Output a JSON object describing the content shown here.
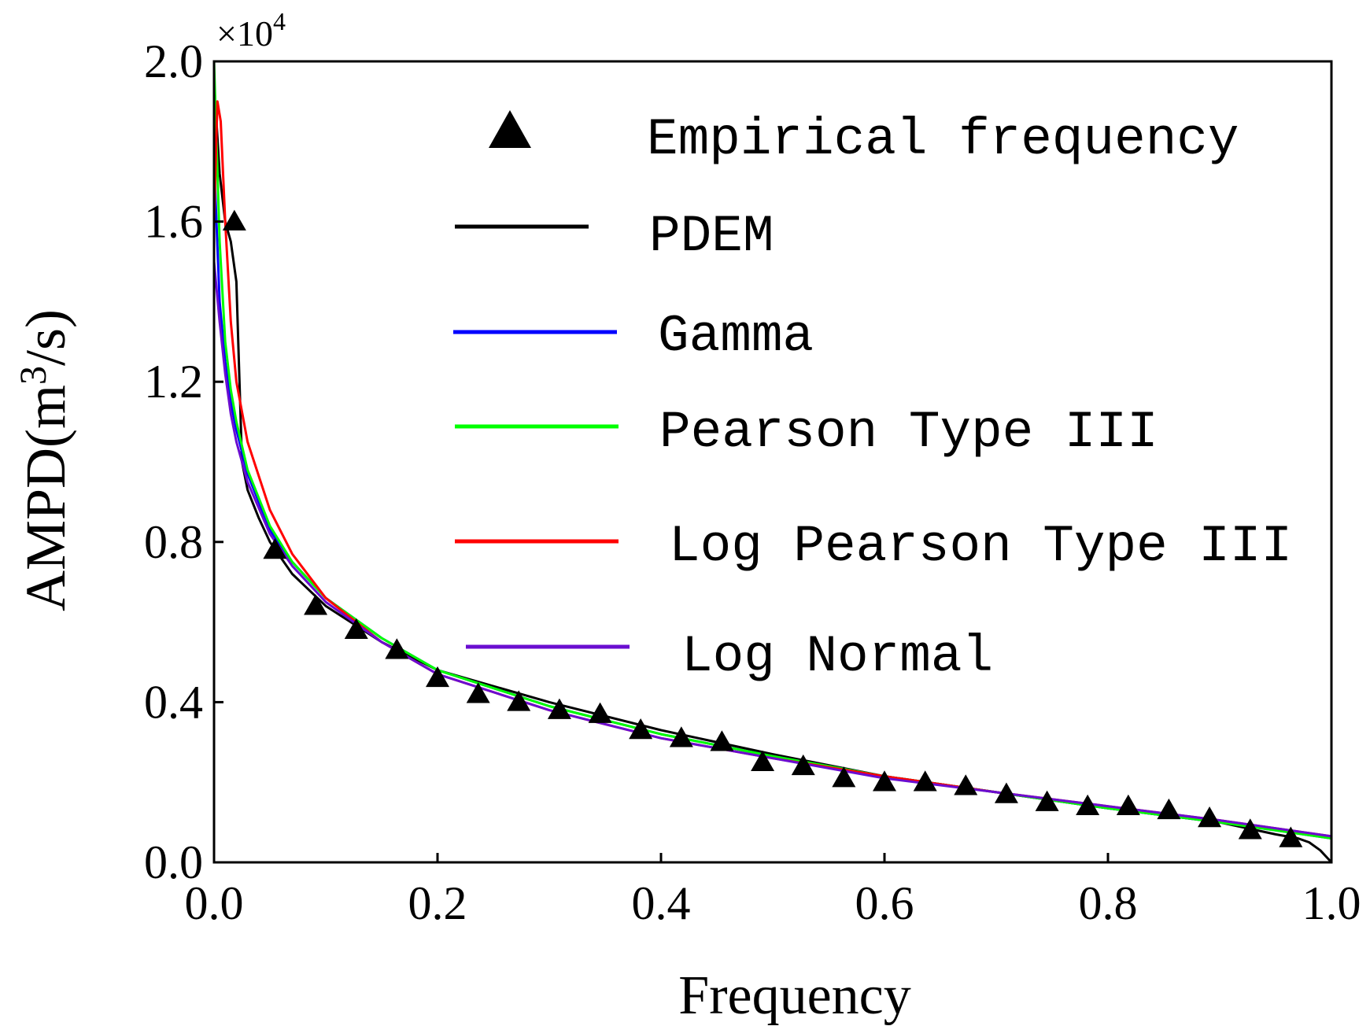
{
  "chart_data": {
    "type": "line",
    "title": "",
    "xlabel": "Frequency",
    "ylabel": "AMPD(m³/s)",
    "ylabel_parts": {
      "main": "AMPD(m",
      "sup": "3",
      "tail": "/s)"
    },
    "y_multiplier": {
      "base": "×10",
      "exp": "4"
    },
    "xlim": [
      0.0,
      1.0
    ],
    "ylim": [
      0.0,
      2.0
    ],
    "x_ticks": [
      "0.0",
      "0.2",
      "0.4",
      "0.6",
      "0.8",
      "1.0"
    ],
    "y_ticks": [
      "0.0",
      "0.4",
      "0.8",
      "1.2",
      "1.6",
      "2.0"
    ],
    "grid": false,
    "legend_position": "top-right",
    "markers": {
      "name": "Empirical frequency",
      "color": "#000000",
      "x": [
        0.0182,
        0.0545,
        0.0909,
        0.1273,
        0.1636,
        0.2,
        0.2364,
        0.2727,
        0.3091,
        0.3455,
        0.3818,
        0.4182,
        0.4545,
        0.4909,
        0.5273,
        0.5636,
        0.6,
        0.6364,
        0.6727,
        0.7091,
        0.7455,
        0.7818,
        0.8182,
        0.8545,
        0.8909,
        0.9273,
        0.9636
      ],
      "y": [
        1.6,
        0.78,
        0.64,
        0.58,
        0.53,
        0.46,
        0.42,
        0.4,
        0.38,
        0.37,
        0.33,
        0.31,
        0.3,
        0.25,
        0.24,
        0.21,
        0.2,
        0.2,
        0.19,
        0.17,
        0.15,
        0.14,
        0.14,
        0.13,
        0.11,
        0.08,
        0.06
      ]
    },
    "series": [
      {
        "name": "PDEM",
        "color": "#000000",
        "x": [
          0.0,
          0.005,
          0.01,
          0.015,
          0.02,
          0.025,
          0.03,
          0.04,
          0.05,
          0.07,
          0.1,
          0.15,
          0.2,
          0.3,
          0.4,
          0.5,
          0.6,
          0.7,
          0.8,
          0.9,
          0.95,
          0.97,
          0.98,
          0.99,
          1.0
        ],
        "y": [
          1.95,
          1.72,
          1.6,
          1.55,
          1.45,
          1.0,
          0.93,
          0.86,
          0.8,
          0.72,
          0.64,
          0.55,
          0.48,
          0.4,
          0.33,
          0.27,
          0.215,
          0.175,
          0.135,
          0.1,
          0.07,
          0.06,
          0.05,
          0.03,
          0.0
        ]
      },
      {
        "name": "Gamma",
        "color": "#0000ff",
        "x": [
          0.0,
          0.005,
          0.01,
          0.015,
          0.02,
          0.03,
          0.05,
          0.07,
          0.1,
          0.15,
          0.2,
          0.3,
          0.4,
          0.5,
          0.6,
          0.7,
          0.8,
          0.9,
          0.95,
          1.0
        ],
        "y": [
          1.75,
          1.4,
          1.25,
          1.15,
          1.08,
          0.97,
          0.83,
          0.75,
          0.66,
          0.56,
          0.48,
          0.39,
          0.32,
          0.265,
          0.215,
          0.175,
          0.135,
          0.1,
          0.08,
          0.06
        ]
      },
      {
        "name": "Pearson Type III",
        "color": "#00ff00",
        "x": [
          0.0,
          0.005,
          0.01,
          0.015,
          0.02,
          0.03,
          0.05,
          0.07,
          0.1,
          0.15,
          0.2,
          0.3,
          0.4,
          0.5,
          0.6,
          0.7,
          0.8,
          0.9,
          0.95,
          1.0
        ],
        "y": [
          2.0,
          1.55,
          1.3,
          1.18,
          1.1,
          0.98,
          0.84,
          0.75,
          0.66,
          0.56,
          0.48,
          0.39,
          0.32,
          0.265,
          0.215,
          0.175,
          0.135,
          0.1,
          0.08,
          0.06
        ]
      },
      {
        "name": "Log Pearson Type III",
        "color": "#ff0000",
        "x": [
          0.0,
          0.003,
          0.006,
          0.01,
          0.015,
          0.02,
          0.03,
          0.05,
          0.07,
          0.1,
          0.15,
          0.2,
          0.3,
          0.4,
          0.5,
          0.6,
          0.7,
          0.8,
          0.9,
          0.95,
          1.0
        ],
        "y": [
          1.6,
          1.9,
          1.85,
          1.6,
          1.35,
          1.2,
          1.05,
          0.88,
          0.77,
          0.66,
          0.55,
          0.47,
          0.38,
          0.31,
          0.26,
          0.215,
          0.175,
          0.14,
          0.105,
          0.085,
          0.065
        ]
      },
      {
        "name": "Log Normal",
        "color": "#6a0dd0",
        "x": [
          0.0,
          0.005,
          0.01,
          0.015,
          0.02,
          0.03,
          0.05,
          0.07,
          0.1,
          0.15,
          0.2,
          0.3,
          0.4,
          0.5,
          0.6,
          0.7,
          0.8,
          0.9,
          0.95,
          1.0
        ],
        "y": [
          1.5,
          1.35,
          1.22,
          1.12,
          1.05,
          0.95,
          0.82,
          0.74,
          0.65,
          0.55,
          0.47,
          0.38,
          0.31,
          0.26,
          0.21,
          0.175,
          0.14,
          0.105,
          0.085,
          0.065
        ]
      }
    ]
  }
}
